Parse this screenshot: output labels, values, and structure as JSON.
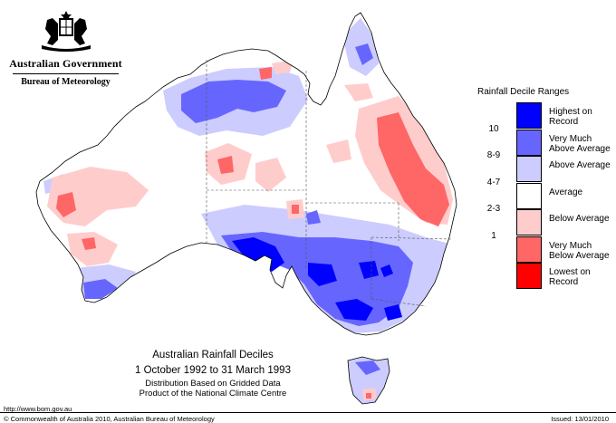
{
  "header": {
    "government": "Australian Government",
    "bureau": "Bureau of Meteorology",
    "crest_icon": "coat-of-arms-icon"
  },
  "legend": {
    "title": "Rainfall Decile Ranges",
    "ticks": [
      "10",
      "8-9",
      "4-7",
      "2-3",
      "1"
    ],
    "categories": [
      {
        "label": "Highest on Record",
        "color": "#0000ff"
      },
      {
        "label": "Very Much Above Average",
        "color": "#6666ff"
      },
      {
        "label": "Above Average",
        "color": "#ccccff"
      },
      {
        "label": "Average",
        "color": "#ffffff"
      },
      {
        "label": "Below Average",
        "color": "#ffcccc"
      },
      {
        "label": "Very Much Below Average",
        "color": "#ff6666"
      },
      {
        "label": "Lowest on Record",
        "color": "#ff0000"
      }
    ]
  },
  "titles": {
    "main": "Australian Rainfall Deciles",
    "period": "1 October 1992 to 31 March 1993",
    "note_line1": "Distribution Based on Gridded Data",
    "note_line2": "Product of the National Climate Centre"
  },
  "footer": {
    "url": "http://www.bom.gov.au",
    "copyright": "© Commonwealth of Australia 2010, Australian Bureau of Meteorology",
    "issued": "Issued: 13/01/2010"
  }
}
